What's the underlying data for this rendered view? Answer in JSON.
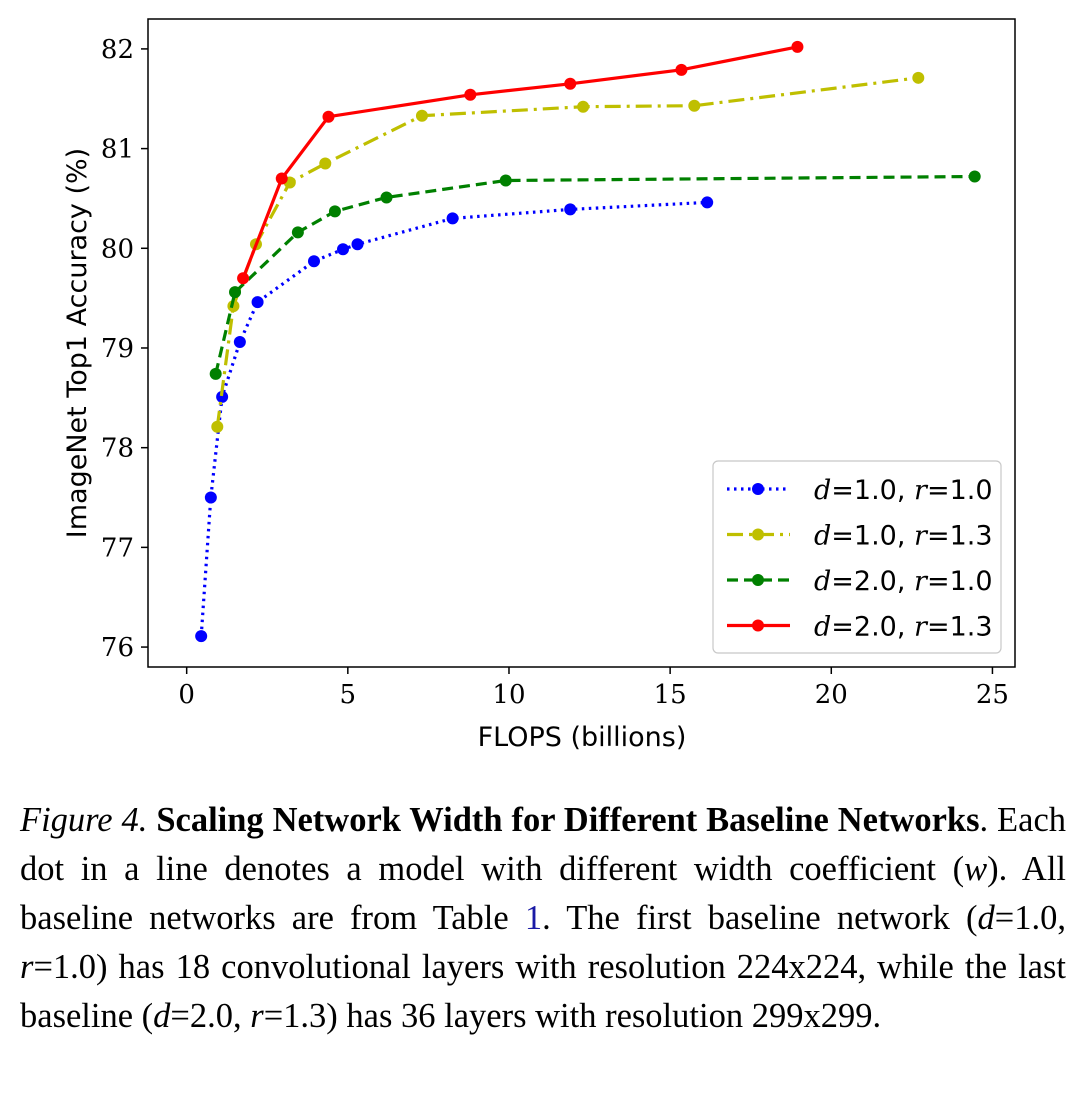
{
  "chart_data": {
    "type": "line",
    "xlabel": "FLOPS (billions)",
    "ylabel": "ImageNet Top1 Accuracy (%)",
    "xlim": [
      -1.2,
      25.7
    ],
    "ylim": [
      75.8,
      82.3
    ],
    "xticks": [
      0,
      5,
      10,
      15,
      20,
      25
    ],
    "yticks": [
      76,
      77,
      78,
      79,
      80,
      81,
      82
    ],
    "legend_position": "lower-right",
    "series": [
      {
        "var1": "d",
        "val1": "=1.0, ",
        "var2": "r",
        "val2": "=1.0",
        "color": "#0000ff",
        "linestyle": "dotted",
        "x": [
          0.45,
          0.75,
          1.1,
          1.65,
          2.2,
          3.95,
          4.85,
          5.3,
          8.25,
          11.9,
          16.15
        ],
        "y": [
          76.11,
          77.5,
          78.51,
          79.06,
          79.46,
          79.87,
          79.99,
          80.04,
          80.3,
          80.39,
          80.46
        ]
      },
      {
        "var1": "d",
        "val1": "=1.0, ",
        "var2": "r",
        "val2": "=1.3",
        "color": "#bfbf00",
        "linestyle": "dashdot",
        "x": [
          0.95,
          1.45,
          2.15,
          3.2,
          4.3,
          7.3,
          12.3,
          15.75,
          22.7
        ],
        "y": [
          78.21,
          79.42,
          80.04,
          80.66,
          80.85,
          81.33,
          81.42,
          81.43,
          81.71
        ]
      },
      {
        "var1": "d",
        "val1": "=2.0, ",
        "var2": "r",
        "val2": "=1.0",
        "color": "#008000",
        "linestyle": "dashed",
        "x": [
          0.9,
          1.5,
          3.45,
          4.6,
          6.2,
          9.9,
          24.45
        ],
        "y": [
          78.74,
          79.56,
          80.16,
          80.37,
          80.51,
          80.68,
          80.72
        ]
      },
      {
        "var1": "d",
        "val1": "=2.0, ",
        "var2": "r",
        "val2": "=1.3",
        "color": "#ff0000",
        "linestyle": "solid",
        "x": [
          1.75,
          2.95,
          4.4,
          8.8,
          11.9,
          15.35,
          18.95
        ],
        "y": [
          79.7,
          80.7,
          81.32,
          81.54,
          81.65,
          81.79,
          82.02
        ]
      }
    ]
  },
  "caption": {
    "figure_label": "Figure 4.",
    "title": "Scaling Network Width for Different Baseline Networks",
    "body_1": ". Each dot in a line denotes a model with different width coefficient (",
    "var_w": "w",
    "body_2": "). All baseline networks are from Table ",
    "table_ref": "1",
    "body_3": ". The first baseline network (",
    "var_d1": "d",
    "body_4": "=1.0, ",
    "var_r1": "r",
    "body_5": "=1.0) has 18 convolutional layers with resolution 224x224, while the last baseline (",
    "var_d2": "d",
    "body_6": "=2.0, ",
    "var_r2": "r",
    "body_7": "=1.3) has 36 layers with resolution 299x299."
  }
}
